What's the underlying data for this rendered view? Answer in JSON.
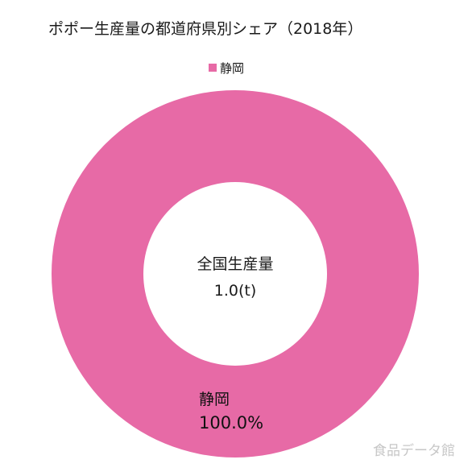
{
  "chart_data": {
    "type": "pie",
    "title": "ポポー生産量の都道府県別シェア（2018年）",
    "categories": [
      "静岡"
    ],
    "values": [
      100.0
    ],
    "percent_labels": [
      "100.0%"
    ],
    "colors": [
      "#e76aa6"
    ],
    "donut": true,
    "legend_position": "top",
    "center_text": {
      "line1": "全国生産量",
      "line2": "1.0(t)"
    }
  },
  "watermark": "食品データ館"
}
